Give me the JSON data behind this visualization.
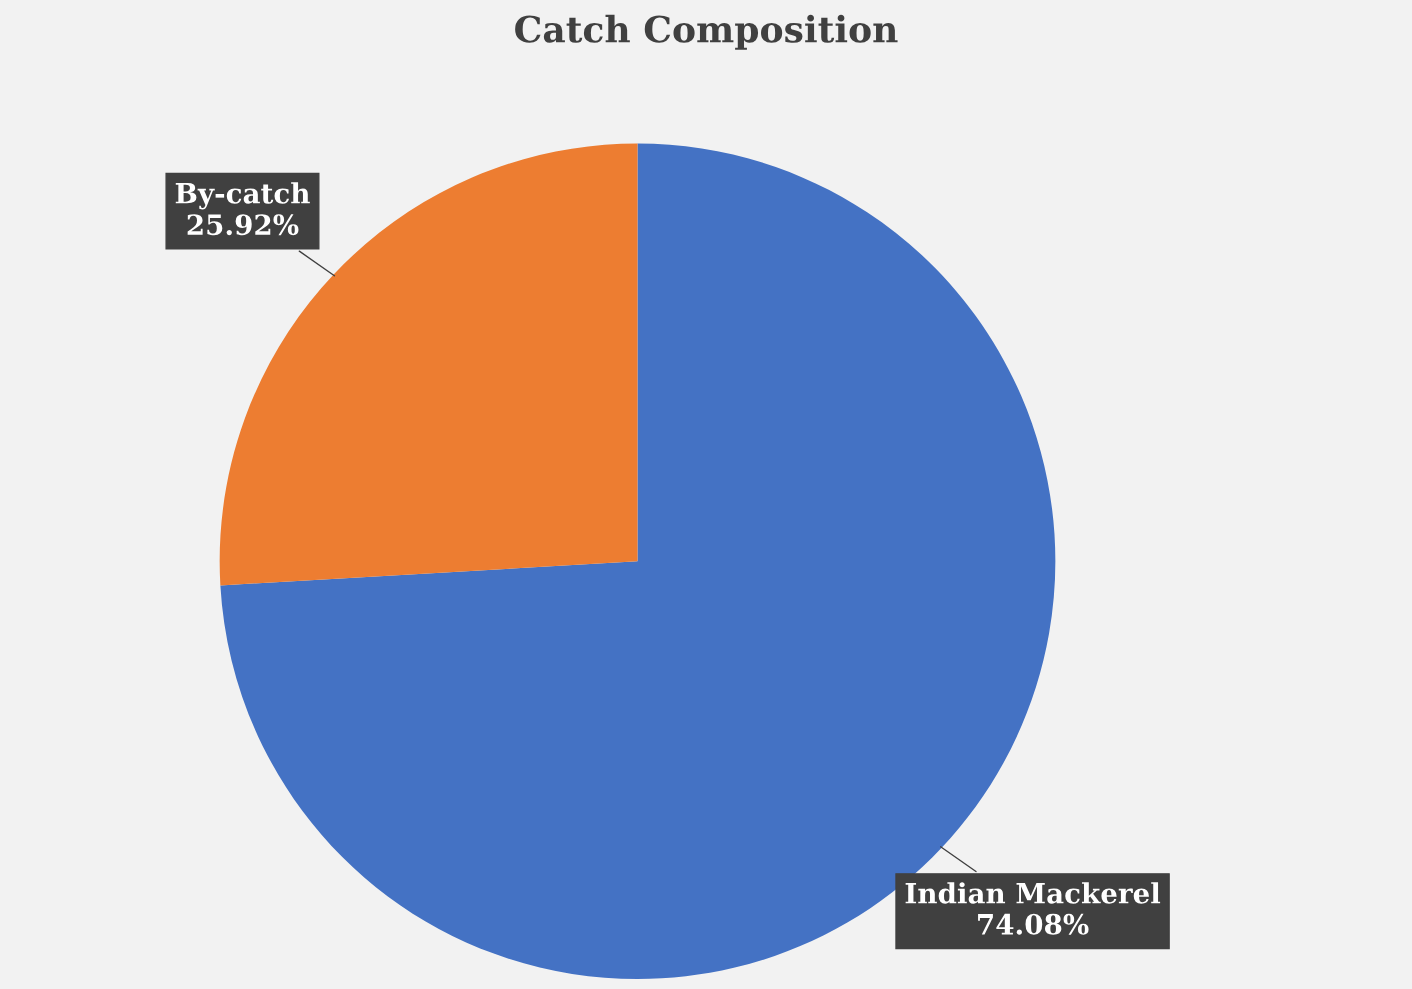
{
  "chart_data": {
    "type": "pie",
    "title": "Catch Composition",
    "categories": [
      "Indian Mackerel",
      "By-catch"
    ],
    "values": [
      74.08,
      25.92
    ],
    "colors": [
      "#4472c4",
      "#ed7d31"
    ],
    "value_labels": [
      "74.08%",
      "25.92%"
    ]
  }
}
